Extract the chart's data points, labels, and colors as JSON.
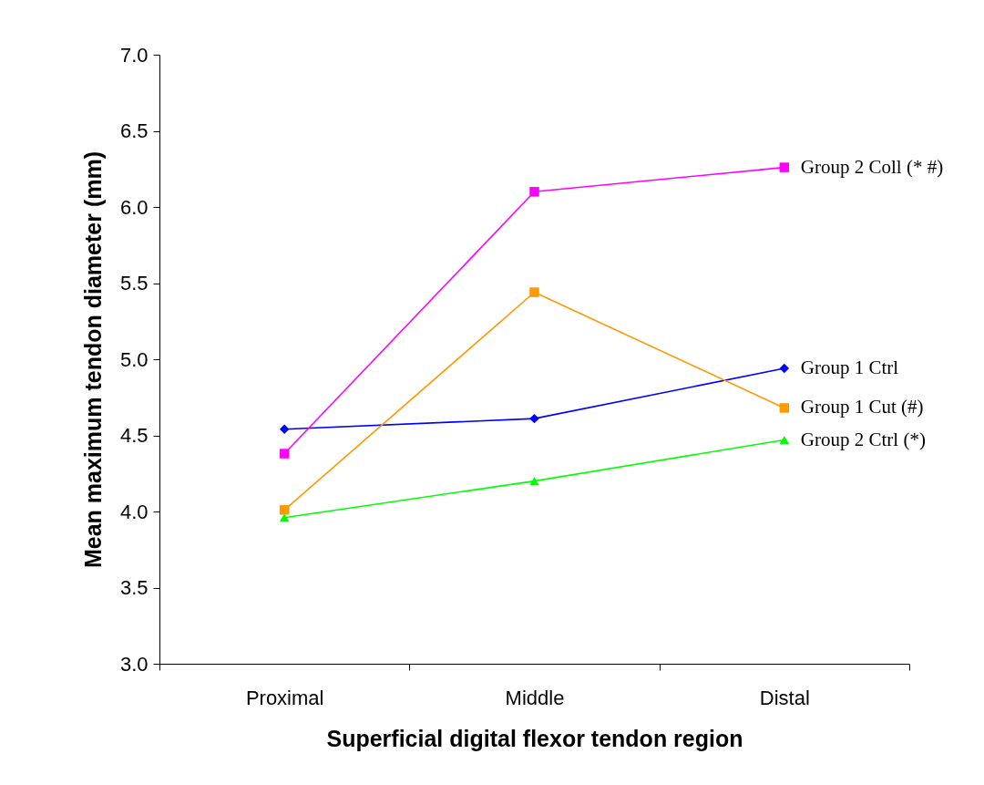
{
  "chart_data": {
    "type": "line",
    "xlabel": "Superficial digital flexor tendon region",
    "ylabel": "Mean maximum tendon diameter (mm)",
    "categories": [
      "Proximal",
      "Middle",
      "Distal"
    ],
    "series": [
      {
        "name": "Group 1 Ctrl",
        "color": "#0000ff",
        "marker": "diamond",
        "values": [
          4.54,
          4.61,
          4.94
        ]
      },
      {
        "name": "Group 1 Cut (#)",
        "color": "#ff9900",
        "marker": "square",
        "values": [
          4.01,
          5.44,
          4.68
        ]
      },
      {
        "name": "Group 2 Ctrl (*)",
        "color": "#00ff00",
        "marker": "triangle",
        "values": [
          3.96,
          4.2,
          4.47
        ]
      },
      {
        "name": "Group 2 Coll (* #)",
        "color": "#ff00ff",
        "marker": "square",
        "values": [
          4.38,
          6.1,
          6.26
        ]
      }
    ],
    "ylim": [
      3,
      7
    ],
    "yticks": [
      {
        "value": 3,
        "label": "3.0"
      },
      {
        "value": 3.5,
        "label": "3.5"
      },
      {
        "value": 4,
        "label": "4.0"
      },
      {
        "value": 4.5,
        "label": "4.5"
      },
      {
        "value": 5,
        "label": "5.0"
      },
      {
        "value": 5.5,
        "label": "5.5"
      },
      {
        "value": 6,
        "label": "6.0"
      },
      {
        "value": 6.5,
        "label": "6.5"
      },
      {
        "value": 7,
        "label": "7.0"
      }
    ],
    "grid": false,
    "legend": false
  }
}
